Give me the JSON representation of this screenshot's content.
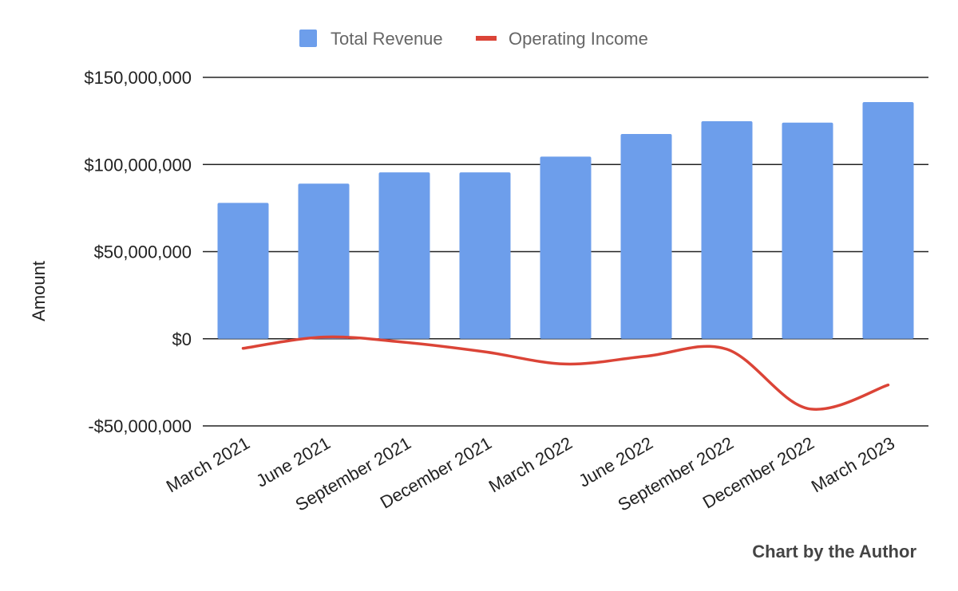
{
  "chart_data": {
    "type": "bar",
    "categories": [
      "March 2021",
      "June 2021",
      "September 2021",
      "December 2021",
      "March 2022",
      "June 2022",
      "September 2022",
      "December 2022",
      "March 2023"
    ],
    "series": [
      {
        "name": "Total Revenue",
        "type": "bar",
        "color": "#6d9eeb",
        "values": [
          78000000,
          89000000,
          95500000,
          95500000,
          104500000,
          117500000,
          124800000,
          124000000,
          135800000
        ]
      },
      {
        "name": "Operating Income",
        "type": "line",
        "color": "#db4437",
        "values": [
          -5500000,
          1000000,
          -2000000,
          -7500000,
          -14500000,
          -10000000,
          -6000000,
          -40000000,
          -26500000
        ]
      }
    ],
    "ylabel": "Amount",
    "xlabel": "",
    "ylim": [
      -50000000,
      150000000
    ],
    "yticks": [
      150000000,
      100000000,
      50000000,
      0,
      -50000000
    ],
    "ytick_labels": [
      "$150,000,000",
      "$100,000,000",
      "$50,000,000",
      "$0",
      "-$50,000,000"
    ],
    "grid": true,
    "legend_position": "top-center",
    "line_style": "smooth"
  },
  "credit": "Chart by the Author"
}
